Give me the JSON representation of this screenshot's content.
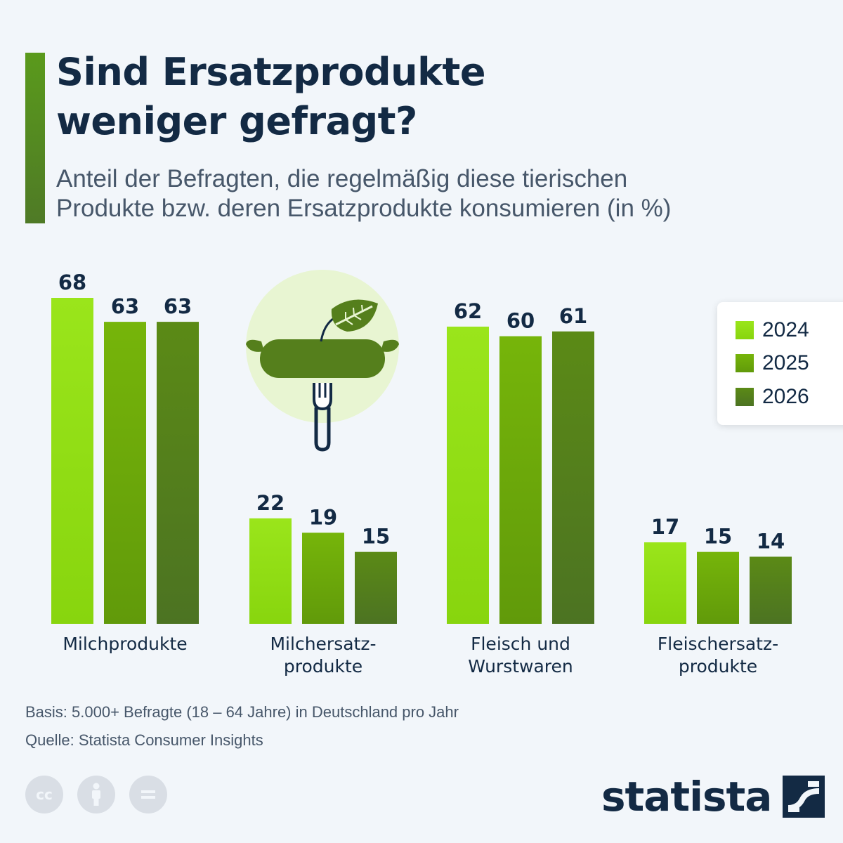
{
  "header": {
    "title_line1": "Sind Ersatzprodukte",
    "title_line2": "weniger gefragt?",
    "subtitle_line1": "Anteil der Befragten, die regelmäßig diese tierischen",
    "subtitle_line2": "Produkte bzw. deren Ersatzprodukte konsumieren (in %)"
  },
  "colors": {
    "accent": "#5a9a1c",
    "title": "#132a44",
    "series": [
      "#96e018",
      "#6fae06",
      "#557f1c"
    ]
  },
  "chart_data": {
    "type": "bar",
    "categories": [
      [
        "Milchprodukte"
      ],
      [
        "Milchersatz-",
        "produkte"
      ],
      [
        "Fleisch und",
        "Wurstwaren"
      ],
      [
        "Fleischersatz-",
        "produkte"
      ]
    ],
    "series": [
      {
        "name": "2024",
        "values": [
          68,
          22,
          62,
          17
        ]
      },
      {
        "name": "2025",
        "values": [
          63,
          19,
          60,
          15
        ]
      },
      {
        "name": "2026",
        "values": [
          63,
          15,
          61,
          14
        ]
      }
    ],
    "ylim": [
      0,
      70
    ],
    "legend_position": "top-right",
    "grid": false
  },
  "legend": {
    "items": [
      {
        "label": "2024",
        "color": "#96e018"
      },
      {
        "label": "2025",
        "color": "#6fae06"
      },
      {
        "label": "2026",
        "color": "#557f1c"
      }
    ]
  },
  "illustration": {
    "icon": "sausage-on-fork-icon"
  },
  "footer": {
    "basis": "Basis: 5.000+ Befragte (18 – 64 Jahre) in Deutschland pro Jahr",
    "source": "Quelle: Statista Consumer Insights",
    "license_icons": [
      "cc-icon",
      "attribution-icon",
      "no-derivatives-icon"
    ],
    "brand": "statista"
  }
}
